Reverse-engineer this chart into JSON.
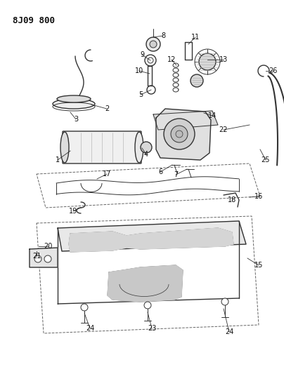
{
  "title": "8J09 800",
  "bg_color": "#ffffff",
  "fig_width": 4.04,
  "fig_height": 5.33,
  "dpi": 100,
  "line_color": "#333333",
  "text_color": "#111111",
  "dash_color": "#666666"
}
